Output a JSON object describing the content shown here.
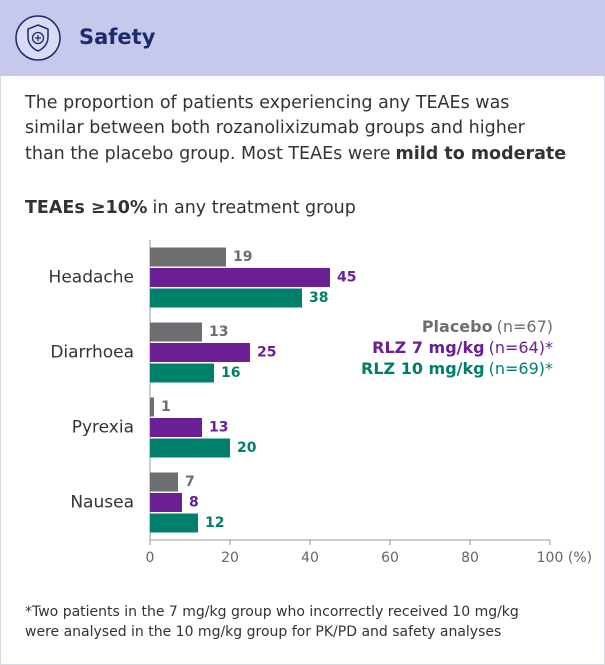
{
  "header": {
    "title": "Safety"
  },
  "intro": {
    "lines": [
      "The proportion of patients experiencing any TEAEs was",
      "similar between both rozanolixizumab groups and higher",
      "than the placebo group. Most TEAEs were"
    ],
    "bold": "mild to moderate"
  },
  "chart_data": {
    "type": "bar",
    "orientation": "horizontal",
    "title_bold": "TEAEs ≥10%",
    "title_rest": "in any treatment group",
    "categories": [
      "Headache",
      "Diarrhoea",
      "Pyrexia",
      "Nausea"
    ],
    "series": [
      {
        "name": "Placebo",
        "note": "(n=67)",
        "color": "#6d6e71",
        "values": [
          19,
          13,
          1,
          7
        ]
      },
      {
        "name": "RLZ 7 mg/kg",
        "note": "(n=64)*",
        "color": "#6a1f95",
        "values": [
          45,
          25,
          13,
          8
        ]
      },
      {
        "name": "RLZ 10 mg/kg",
        "note": "(n=69)*",
        "color": "#00806a",
        "values": [
          38,
          16,
          20,
          12
        ]
      }
    ],
    "xlim": [
      0,
      100
    ],
    "xticks": [
      0,
      20,
      40,
      60,
      80,
      100
    ],
    "x_unit": "(%)",
    "legend": "right"
  },
  "footnote": [
    "*Two patients in the 7 mg/kg group who incorrectly received 10 mg/kg",
    "were analysed in the 10 mg/kg group for PK/PD and safety analyses"
  ]
}
